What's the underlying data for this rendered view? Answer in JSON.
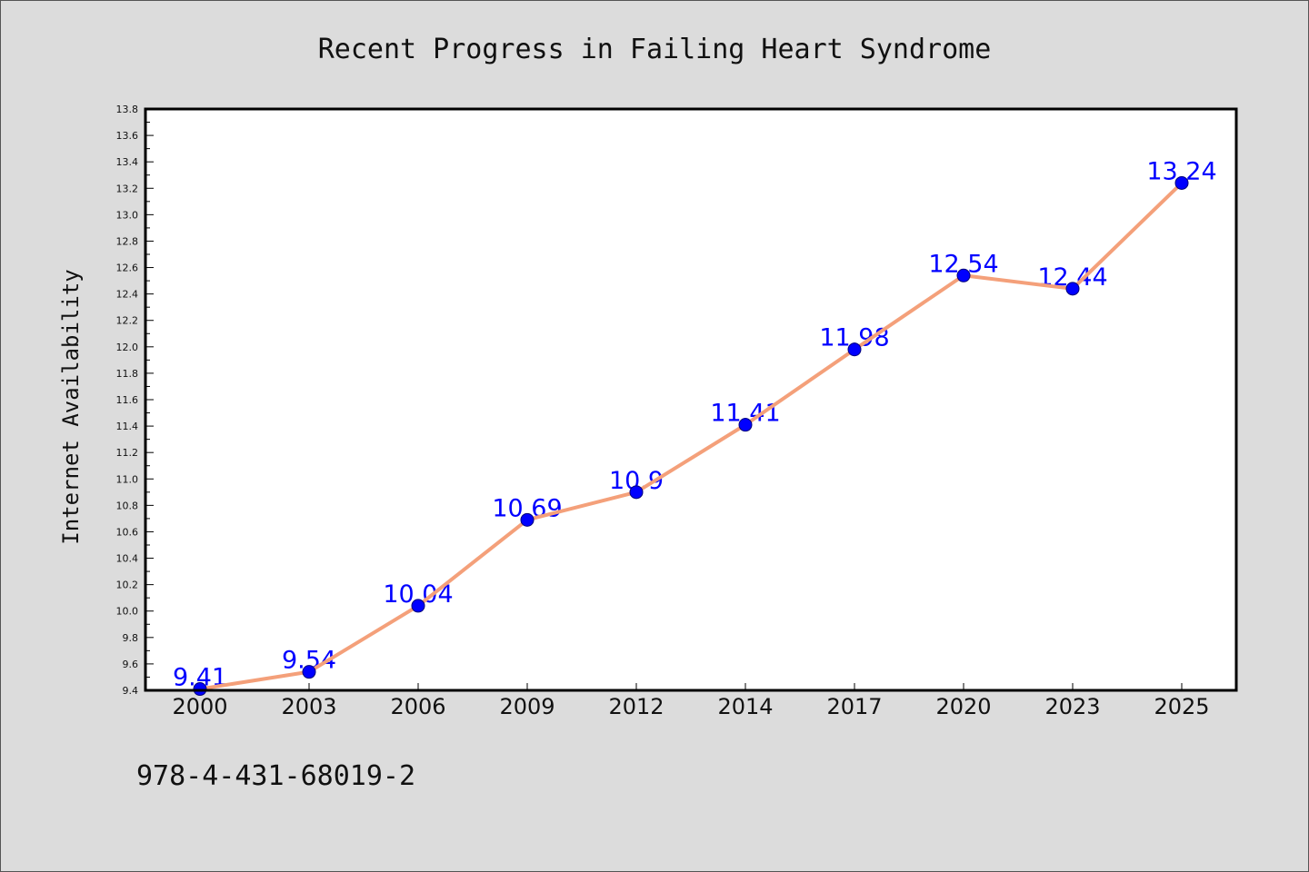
{
  "chart_data": {
    "type": "line",
    "title": "Recent Progress in Failing Heart Syndrome",
    "xlabel": "",
    "ylabel": "Internet Availability",
    "categories": [
      "2000",
      "2003",
      "2006",
      "2009",
      "2012",
      "2014",
      "2017",
      "2020",
      "2023",
      "2025"
    ],
    "series": [
      {
        "values": [
          9.41,
          9.54,
          10.04,
          10.69,
          10.9,
          11.41,
          11.98,
          12.54,
          12.44,
          13.24
        ],
        "line_color": "#f4a07a",
        "marker_color": "#0000ff",
        "label_color": "#0000ff"
      }
    ],
    "ylim": [
      9.4,
      13.8
    ],
    "y_tick_labels": [
      "9.4",
      "9.6",
      "9.8",
      "10.0",
      "10.2",
      "10.4",
      "10.6",
      "10.8",
      "11.0",
      "11.2",
      "11.4",
      "11.6",
      "11.8",
      "12.0",
      "12.2",
      "12.4",
      "12.6",
      "12.8",
      "13.0",
      "13.2",
      "13.4",
      "13.6",
      "13.8"
    ],
    "data_labels": true,
    "grid": false,
    "legend": "none"
  },
  "footer": {
    "code": "978-4-431-68019-2"
  },
  "colors": {
    "page_background": "#dcdcdc",
    "plot_background": "#ffffff",
    "axis": "#000000"
  }
}
